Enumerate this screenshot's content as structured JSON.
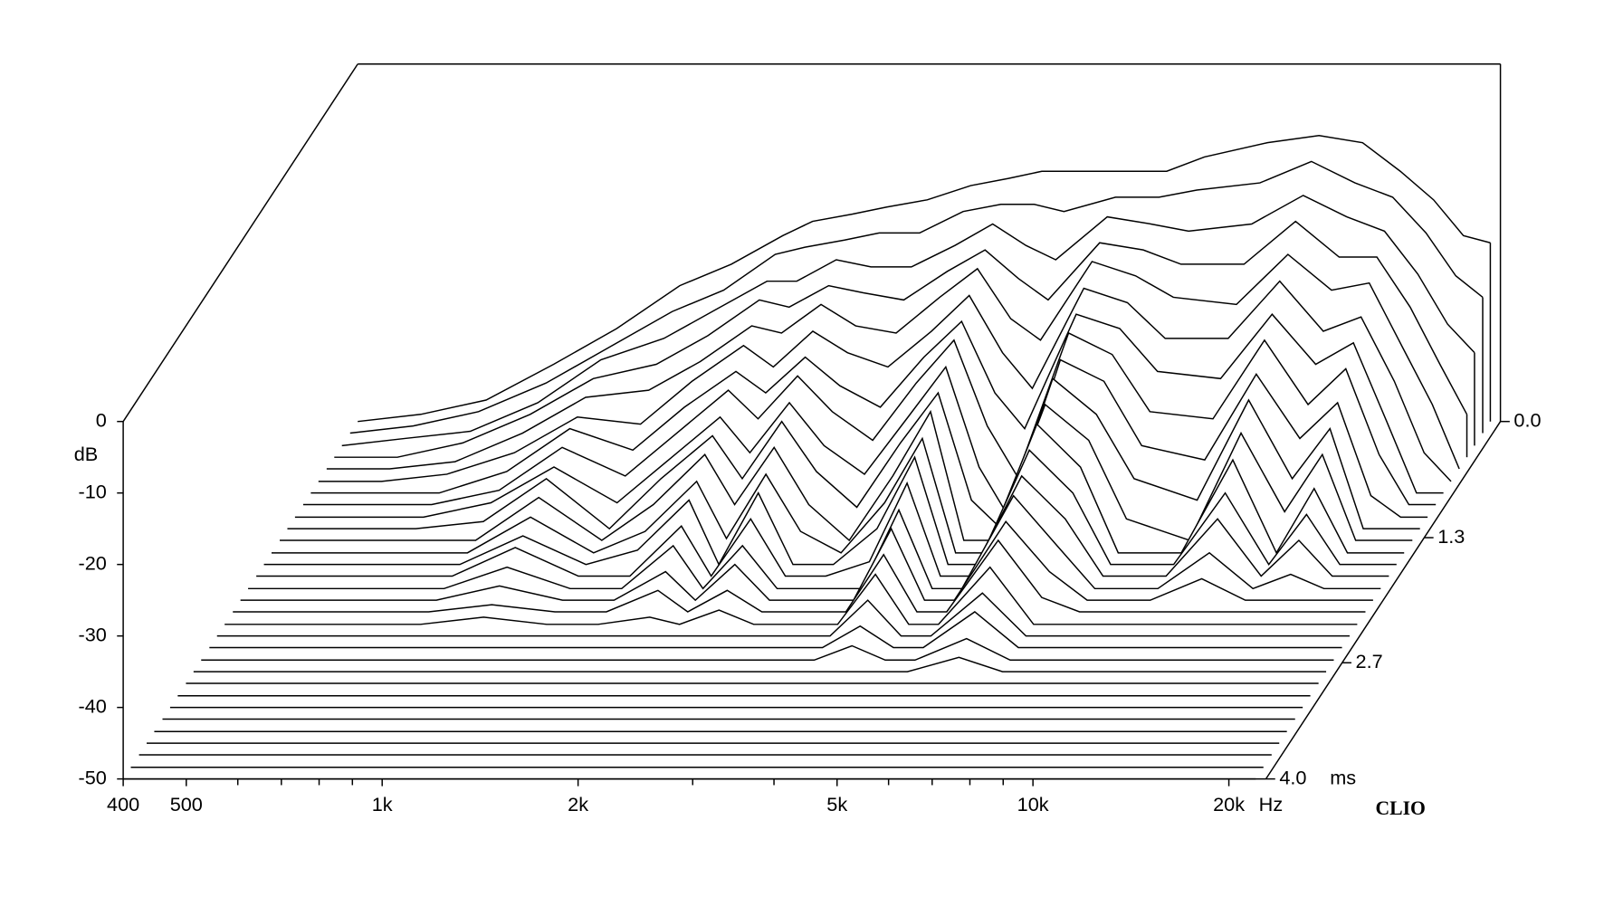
{
  "chart_data": {
    "type": "waterfall",
    "color": "#000000",
    "y_label": "dB",
    "x_unit": "Hz",
    "z_unit": "ms",
    "brand": "CLIO",
    "xscale": "log",
    "xlim": [
      400,
      22800
    ],
    "ylim": [
      -50,
      0
    ],
    "zlim": [
      0,
      4.0
    ],
    "xticks": [
      400,
      500,
      {
        "value": 1000,
        "label": "1k"
      },
      {
        "value": 2000,
        "label": "2k"
      },
      {
        "value": 5000,
        "label": "5k"
      },
      {
        "value": 10000,
        "label": "10k"
      },
      {
        "value": 20000,
        "label": "20k"
      }
    ],
    "xminorticks": [
      600,
      700,
      800,
      900,
      3000,
      4000,
      6000,
      7000,
      8000,
      9000
    ],
    "yticks": [
      0,
      -10,
      -20,
      -30,
      -40,
      -50
    ],
    "zticks": [
      {
        "value": 0,
        "label": "0.0"
      },
      1.3,
      2.7,
      {
        "value": 4,
        "label": "4.0"
      }
    ],
    "x": [
      400,
      500,
      630,
      800,
      1000,
      1250,
      1500,
      1800,
      2000,
      2300,
      2600,
      3000,
      3500,
      4000,
      4500,
      5000,
      6000,
      7000,
      8000,
      10000,
      12000,
      14000,
      16000,
      18000,
      20000,
      22000
    ],
    "series": [
      {
        "z": 0,
        "values": [
          -50,
          -49,
          -47,
          -42,
          -37,
          -31,
          -28,
          -24,
          -22,
          -21,
          -20,
          -19,
          -17,
          -16,
          -15,
          -15,
          -15,
          -15,
          -13,
          -11,
          -10,
          -11,
          -15,
          -19,
          -24,
          -25
        ]
      },
      {
        "z": 0.13,
        "values": [
          -50,
          -49,
          -47,
          -43,
          -38,
          -33,
          -30,
          -25,
          -24,
          -23,
          -22,
          -22,
          -19,
          -18,
          -18,
          -19,
          -17,
          -17,
          -16,
          -15,
          -12,
          -15,
          -17,
          -22,
          -28,
          -31
        ]
      },
      {
        "z": 0.27,
        "values": [
          -50,
          -49,
          -48,
          -44,
          -38,
          -35,
          -31,
          -27,
          -27,
          -24,
          -25,
          -25,
          -22,
          -19,
          -22,
          -24,
          -18,
          -19,
          -20,
          -19,
          -15,
          -18,
          -20,
          -26,
          -33,
          -37
        ]
      },
      {
        "z": 0.4,
        "values": [
          -50,
          -50,
          -48,
          -44,
          -39,
          -37,
          -33,
          -28,
          -29,
          -26,
          -27,
          -28,
          -24,
          -21,
          -25,
          -28,
          -20,
          -21,
          -23,
          -23,
          -17,
          -22,
          -22,
          -29,
          -37,
          -44
        ]
      },
      {
        "z": 0.53,
        "values": [
          -50,
          -50,
          -49,
          -45,
          -40,
          -39,
          -35,
          -30,
          -31,
          -27,
          -30,
          -31,
          -26,
          -22,
          -29,
          -32,
          -21,
          -23,
          -26,
          -27,
          -20,
          -25,
          -24,
          -33,
          -41,
          -50
        ]
      },
      {
        "z": 0.67,
        "values": [
          -50,
          -50,
          -49,
          -46,
          -41,
          -42,
          -36,
          -31,
          -34,
          -29,
          -32,
          -34,
          -29,
          -24,
          -32,
          -37,
          -23,
          -25,
          -30,
          -30,
          -22,
          -29,
          -27,
          -36,
          -46,
          -50
        ]
      },
      {
        "z": 0.8,
        "values": [
          -50,
          -50,
          -50,
          -47,
          -41,
          -44,
          -38,
          -33,
          -36,
          -31,
          -35,
          -38,
          -31,
          -26,
          -36,
          -41,
          -25,
          -27,
          -33,
          -34,
          -25,
          -32,
          -29,
          -40,
          -50,
          -50
        ]
      },
      {
        "z": 0.93,
        "values": [
          -50,
          -50,
          -50,
          -48,
          -42,
          -46,
          -40,
          -34,
          -38,
          -32,
          -37,
          -41,
          -33,
          -27,
          -39,
          -46,
          -26,
          -29,
          -37,
          -38,
          -27,
          -36,
          -31,
          -43,
          -50,
          -50
        ]
      },
      {
        "z": 1.07,
        "values": [
          -50,
          -50,
          -50,
          -48,
          -43,
          -48,
          -42,
          -36,
          -41,
          -34,
          -40,
          -44,
          -36,
          -29,
          -43,
          -50,
          -28,
          -31,
          -40,
          -42,
          -30,
          -39,
          -34,
          -47,
          -50,
          -50
        ]
      },
      {
        "z": 1.2,
        "values": [
          -50,
          -50,
          -50,
          -49,
          -43,
          -50,
          -43,
          -37,
          -43,
          -35,
          -42,
          -47,
          -38,
          -31,
          -46,
          -50,
          -29,
          -34,
          -43,
          -46,
          -32,
          -43,
          -36,
          -50,
          -50,
          -50
        ]
      },
      {
        "z": 1.33,
        "values": [
          -50,
          -50,
          -50,
          -50,
          -44,
          -50,
          -45,
          -38,
          -45,
          -37,
          -45,
          -50,
          -41,
          -32,
          -50,
          -50,
          -31,
          -36,
          -47,
          -50,
          -35,
          -46,
          -38,
          -50,
          -50,
          -50
        ]
      },
      {
        "z": 1.47,
        "values": [
          -50,
          -50,
          -50,
          -50,
          -45,
          -50,
          -47,
          -40,
          -48,
          -39,
          -47,
          -50,
          -43,
          -34,
          -50,
          -50,
          -32,
          -38,
          -50,
          -50,
          -37,
          -50,
          -41,
          -50,
          -50,
          -50
        ]
      },
      {
        "z": 1.6,
        "values": [
          -50,
          -50,
          -50,
          -50,
          -46,
          -50,
          -48,
          -41,
          -50,
          -40,
          -50,
          -50,
          -45,
          -35,
          -50,
          -50,
          -34,
          -40,
          -50,
          -50,
          -40,
          -50,
          -43,
          -50,
          -50,
          -50
        ]
      },
      {
        "z": 1.73,
        "values": [
          -50,
          -50,
          -50,
          -50,
          -46,
          -50,
          -50,
          -43,
          -50,
          -42,
          -50,
          -50,
          -48,
          -37,
          -50,
          -50,
          -36,
          -42,
          -50,
          -50,
          -42,
          -50,
          -45,
          -50,
          -50,
          -50
        ]
      },
      {
        "z": 1.87,
        "values": [
          -50,
          -50,
          -50,
          -50,
          -47,
          -50,
          -50,
          -44,
          -50,
          -44,
          -50,
          -50,
          -50,
          -39,
          -50,
          -50,
          -37,
          -44,
          -50,
          -50,
          -45,
          -50,
          -48,
          -50,
          -50,
          -50
        ]
      },
      {
        "z": 2.0,
        "values": [
          -50,
          -50,
          -50,
          -50,
          -48,
          -50,
          -50,
          -46,
          -50,
          -45,
          -50,
          -50,
          -50,
          -40,
          -50,
          -50,
          -39,
          -46,
          -50,
          -50,
          -47,
          -50,
          -50,
          -50,
          -50,
          -50
        ]
      },
      {
        "z": 2.13,
        "values": [
          -50,
          -50,
          -50,
          -50,
          -49,
          -50,
          -50,
          -47,
          -50,
          -47,
          -50,
          -50,
          -50,
          -42,
          -50,
          -50,
          -40,
          -48,
          -50,
          -50,
          -50,
          -50,
          -50,
          -50,
          -50,
          -50
        ]
      },
      {
        "z": 2.27,
        "values": [
          -50,
          -50,
          -50,
          -50,
          -49,
          -50,
          -50,
          -49,
          -50,
          -48,
          -50,
          -50,
          -50,
          -43,
          -50,
          -50,
          -42,
          -50,
          -50,
          -50,
          -50,
          -50,
          -50,
          -50,
          -50,
          -50
        ]
      },
      {
        "z": 2.4,
        "values": [
          -50,
          -50,
          -50,
          -50,
          -50,
          -50,
          -50,
          -50,
          -50,
          -50,
          -50,
          -50,
          -50,
          -45,
          -50,
          -50,
          -44,
          -50,
          -50,
          -50,
          -50,
          -50,
          -50,
          -50,
          -50,
          -50
        ]
      },
      {
        "z": 2.53,
        "values": [
          -50,
          -50,
          -50,
          -50,
          -50,
          -50,
          -50,
          -50,
          -50,
          -50,
          -50,
          -50,
          -50,
          -47,
          -50,
          -50,
          -45,
          -50,
          -50,
          -50,
          -50,
          -50,
          -50,
          -50,
          -50,
          -50
        ]
      },
      {
        "z": 2.67,
        "values": [
          -50,
          -50,
          -50,
          -50,
          -50,
          -50,
          -50,
          -50,
          -50,
          -50,
          -50,
          -50,
          -50,
          -48,
          -50,
          -50,
          -47,
          -50,
          -50,
          -50,
          -50,
          -50,
          -50,
          -50,
          -50,
          -50
        ]
      },
      {
        "z": 2.8,
        "values": [
          -50,
          -50,
          -50,
          -50,
          -50,
          -50,
          -50,
          -50,
          -50,
          -50,
          -50,
          -50,
          -50,
          -50,
          -50,
          -50,
          -48,
          -50,
          -50,
          -50,
          -50,
          -50,
          -50,
          -50,
          -50,
          -50
        ]
      },
      {
        "z": 2.93,
        "values": [
          -50,
          -50,
          -50,
          -50,
          -50,
          -50,
          -50,
          -50,
          -50,
          -50,
          -50,
          -50,
          -50,
          -50,
          -50,
          -50,
          -50,
          -50,
          -50,
          -50,
          -50,
          -50,
          -50,
          -50,
          -50,
          -50
        ]
      },
      {
        "z": 3.07,
        "values": [
          -50,
          -50,
          -50,
          -50,
          -50,
          -50,
          -50,
          -50,
          -50,
          -50,
          -50,
          -50,
          -50,
          -50,
          -50,
          -50,
          -50,
          -50,
          -50,
          -50,
          -50,
          -50,
          -50,
          -50,
          -50,
          -50
        ]
      },
      {
        "z": 3.2,
        "values": [
          -50,
          -50,
          -50,
          -50,
          -50,
          -50,
          -50,
          -50,
          -50,
          -50,
          -50,
          -50,
          -50,
          -50,
          -50,
          -50,
          -50,
          -50,
          -50,
          -50,
          -50,
          -50,
          -50,
          -50,
          -50,
          -50
        ]
      },
      {
        "z": 3.33,
        "values": [
          -50,
          -50,
          -50,
          -50,
          -50,
          -50,
          -50,
          -50,
          -50,
          -50,
          -50,
          -50,
          -50,
          -50,
          -50,
          -50,
          -50,
          -50,
          -50,
          -50,
          -50,
          -50,
          -50,
          -50,
          -50,
          -50
        ]
      },
      {
        "z": 3.47,
        "values": [
          -50,
          -50,
          -50,
          -50,
          -50,
          -50,
          -50,
          -50,
          -50,
          -50,
          -50,
          -50,
          -50,
          -50,
          -50,
          -50,
          -50,
          -50,
          -50,
          -50,
          -50,
          -50,
          -50,
          -50,
          -50,
          -50
        ]
      },
      {
        "z": 3.6,
        "values": [
          -50,
          -50,
          -50,
          -50,
          -50,
          -50,
          -50,
          -50,
          -50,
          -50,
          -50,
          -50,
          -50,
          -50,
          -50,
          -50,
          -50,
          -50,
          -50,
          -50,
          -50,
          -50,
          -50,
          -50,
          -50,
          -50
        ]
      },
      {
        "z": 3.73,
        "values": [
          -50,
          -50,
          -50,
          -50,
          -50,
          -50,
          -50,
          -50,
          -50,
          -50,
          -50,
          -50,
          -50,
          -50,
          -50,
          -50,
          -50,
          -50,
          -50,
          -50,
          -50,
          -50,
          -50,
          -50,
          -50,
          -50
        ]
      },
      {
        "z": 3.87,
        "values": [
          -50,
          -50,
          -50,
          -50,
          -50,
          -50,
          -50,
          -50,
          -50,
          -50,
          -50,
          -50,
          -50,
          -50,
          -50,
          -50,
          -50,
          -50,
          -50,
          -50,
          -50,
          -50,
          -50,
          -50,
          -50,
          -50
        ]
      },
      {
        "z": 4.0,
        "values": [
          -50,
          -50,
          -50,
          -50,
          -50,
          -50,
          -50,
          -50,
          -50,
          -50,
          -50,
          -50,
          -50,
          -50,
          -50,
          -50,
          -50,
          -50,
          -50,
          -50,
          -50,
          -50,
          -50,
          -50,
          -50,
          -50
        ]
      }
    ]
  }
}
